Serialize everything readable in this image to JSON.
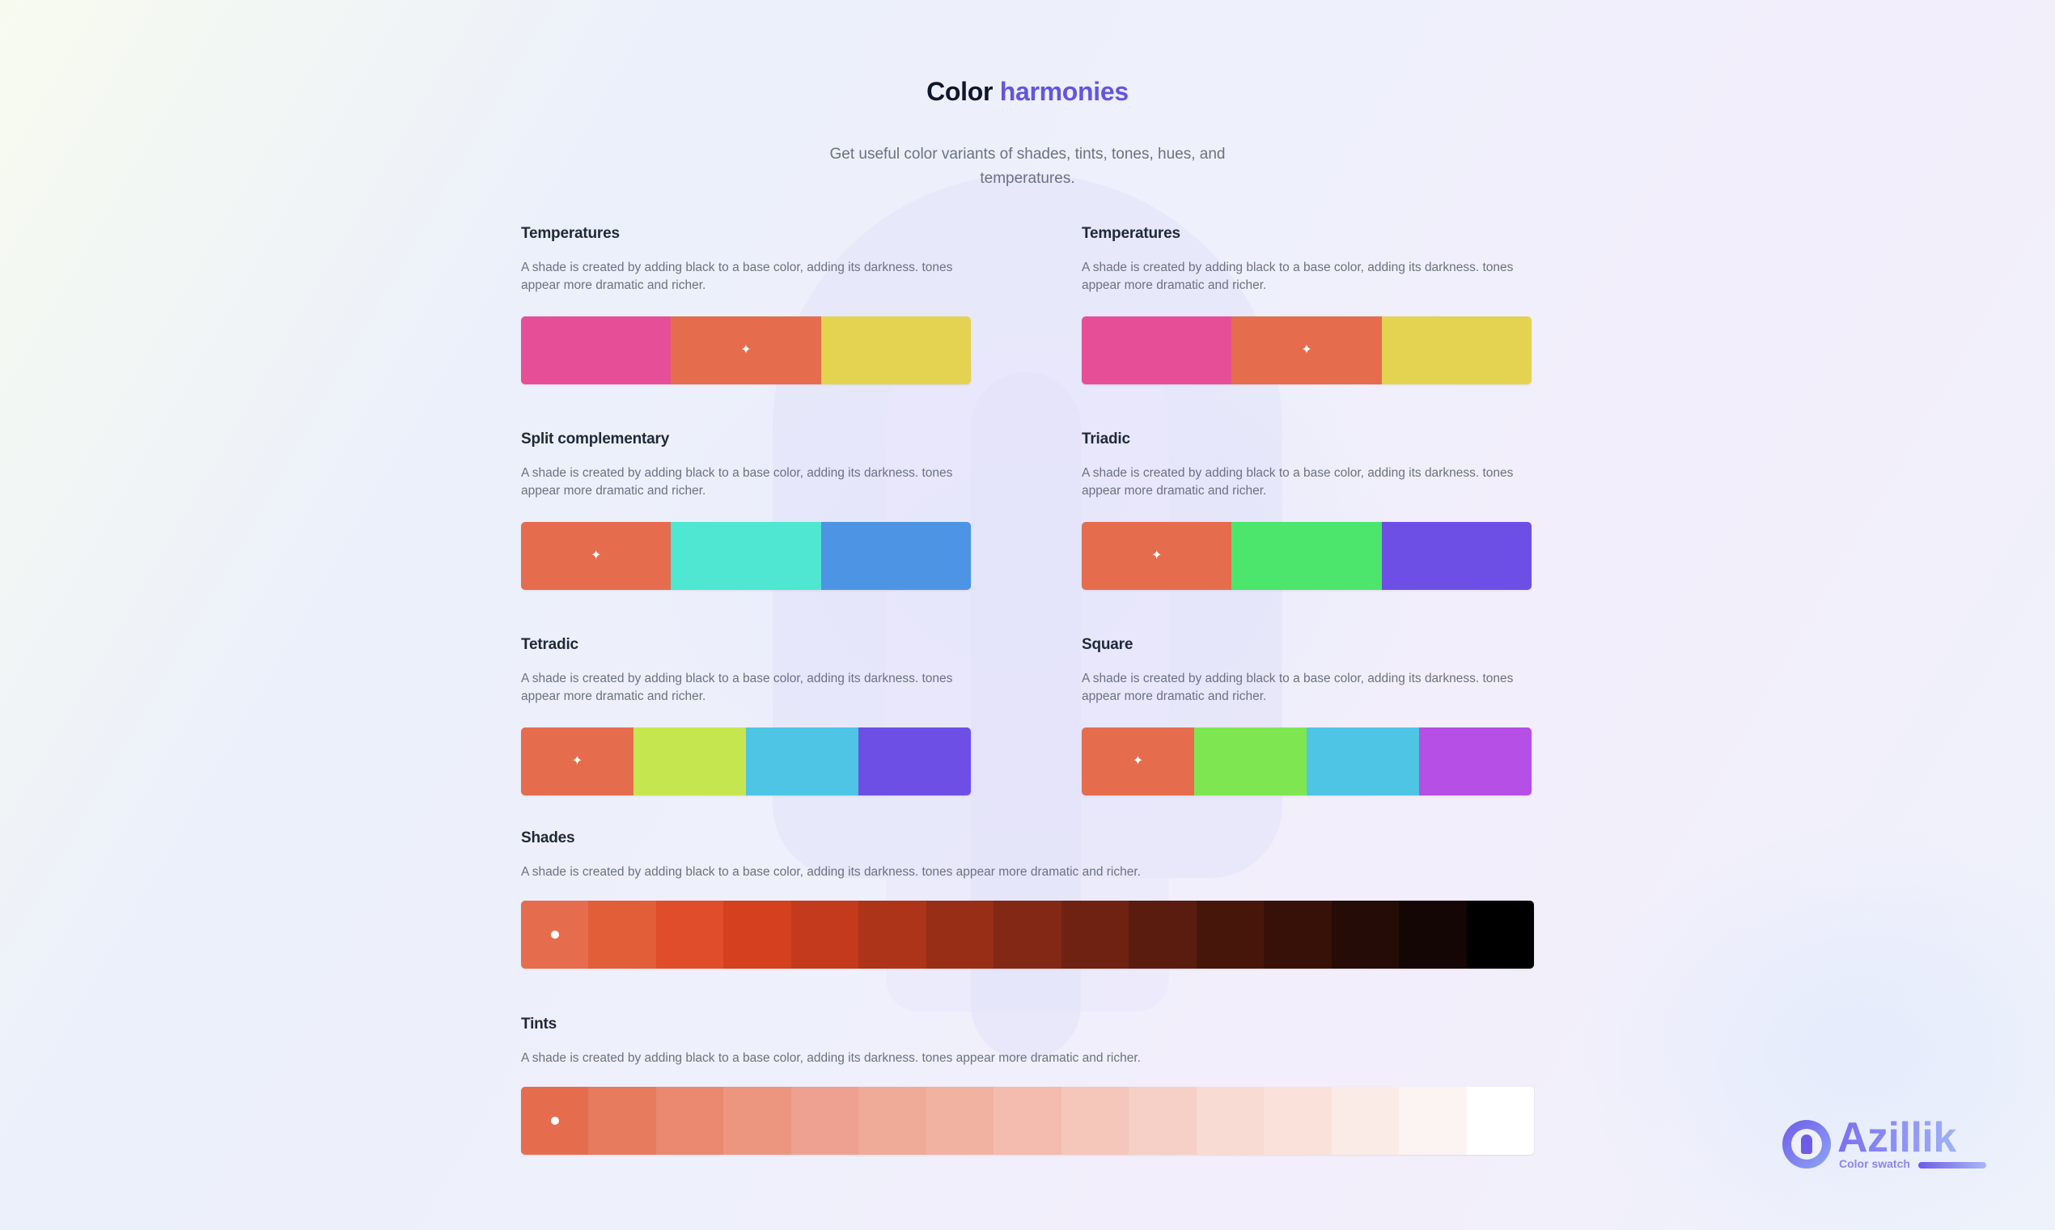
{
  "header": {
    "title_main": "Color",
    "title_accent": "harmonies",
    "subtitle": "Get useful color variants of shades, tints, tones, hues, and temperatures."
  },
  "sections": [
    {
      "title": "Temperatures",
      "description": "A shade is created by adding black to a base color, adding its darkness. tones appear more dramatic and richer.",
      "colors": [
        "#e64f98",
        "#e56d4e",
        "#e4d350"
      ],
      "base_index": 1
    },
    {
      "title": "Temperatures",
      "description": "A shade is created by adding black to a base color, adding its darkness. tones appear more dramatic and richer.",
      "colors": [
        "#e64f98",
        "#e56d4e",
        "#e4d350"
      ],
      "base_index": 1
    },
    {
      "title": "Split complementary",
      "description": "A shade is created by adding black to a base color, adding its darkness. tones appear more dramatic and richer.",
      "colors": [
        "#e56d4e",
        "#4fe6d2",
        "#4d94e4"
      ],
      "base_index": 0
    },
    {
      "title": "Triadic",
      "description": "A shade is created by adding black to a base color, adding its darkness. tones appear more dramatic and richer.",
      "colors": [
        "#e56d4e",
        "#4ce66c",
        "#6d4fe6"
      ],
      "base_index": 0
    },
    {
      "title": "Tetradic",
      "description": "A shade is created by adding black to a base color, adding its darkness. tones appear more dramatic and richer.",
      "colors": [
        "#e56d4e",
        "#c6e650",
        "#4ec5e4",
        "#6d4fe6"
      ],
      "base_index": 0
    },
    {
      "title": "Square",
      "description": "A shade is created by adding black to a base color, adding its darkness. tones appear more dramatic and richer.",
      "colors": [
        "#e56d4e",
        "#7ee650",
        "#4ec5e4",
        "#b54fe6"
      ],
      "base_index": 0
    },
    {
      "title": "Shades",
      "description": "A shade is created by adding black to a base color, adding its darkness. tones appear more dramatic and richer.",
      "colors": [
        "#e56d4e",
        "#e25e38",
        "#e04d2a",
        "#d5401f",
        "#c43a1d",
        "#ad3419",
        "#982e16",
        "#832814",
        "#6f2211",
        "#5a1c0e",
        "#47160b",
        "#371108",
        "#260c06",
        "#140604",
        "#000000"
      ],
      "base_index": 0
    },
    {
      "title": "Tints",
      "description": "A shade is created by adding black to a base color, adding its darkness. tones appear more dramatic and richer.",
      "colors": [
        "#e56d4e",
        "#e77b5e",
        "#ea8870",
        "#ec9680",
        "#eea190",
        "#f0aa98",
        "#f1b2a2",
        "#f3bcae",
        "#f5c6ba",
        "#f6d0c6",
        "#f8dbd2",
        "#fae1da",
        "#fbebe6",
        "#fcf4f2",
        "#ffffff"
      ],
      "base_index": 0
    }
  ],
  "logo": {
    "name": "Azillik",
    "tagline": "Color swatch"
  }
}
